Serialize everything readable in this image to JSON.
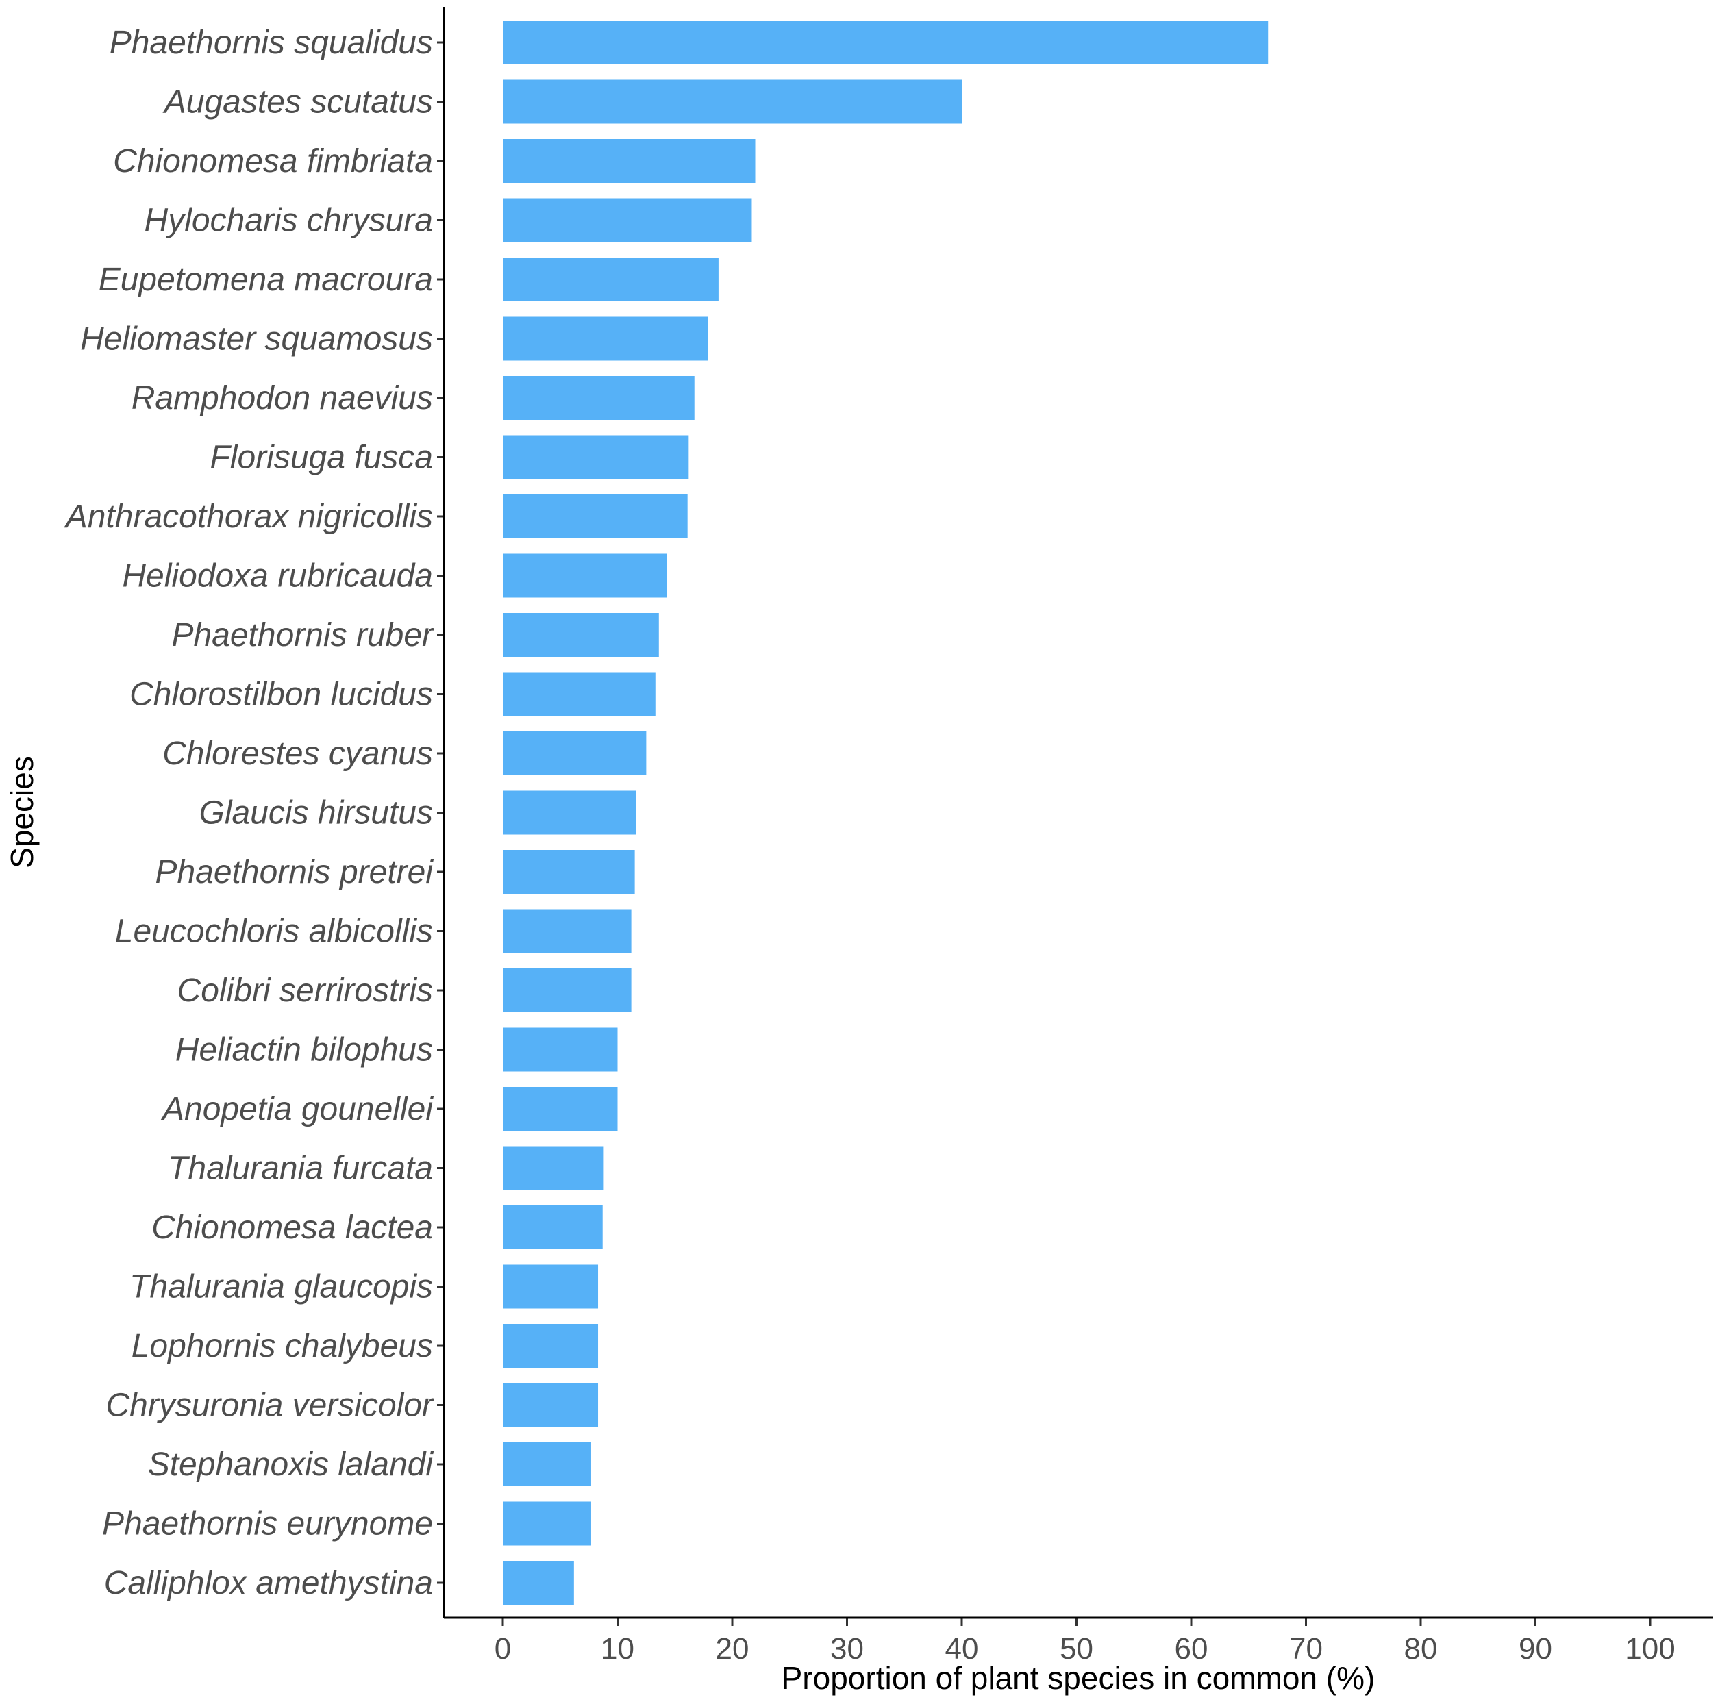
{
  "chart_data": {
    "type": "bar",
    "orientation": "horizontal",
    "categories": [
      "Phaethornis squalidus",
      "Augastes scutatus",
      "Chionomesa fimbriata",
      "Hylocharis chrysura",
      "Eupetomena macroura",
      "Heliomaster squamosus",
      "Ramphodon naevius",
      "Florisuga fusca",
      "Anthracothorax nigricollis",
      "Heliodoxa rubricauda",
      "Phaethornis ruber",
      "Chlorostilbon lucidus",
      "Chlorestes cyanus",
      "Glaucis hirsutus",
      "Phaethornis pretrei",
      "Leucochloris albicollis",
      "Colibri serrirostris",
      "Heliactin bilophus",
      "Anopetia gounellei",
      "Thalurania furcata",
      "Chionomesa lactea",
      "Thalurania glaucopis",
      "Lophornis chalybeus",
      "Chrysuronia versicolor",
      "Stephanoxis lalandi",
      "Phaethornis eurynome",
      "Calliphlox amethystina"
    ],
    "values": [
      66.7,
      40.0,
      22.0,
      21.7,
      18.8,
      17.9,
      16.7,
      16.2,
      16.1,
      14.3,
      13.6,
      13.3,
      12.5,
      11.6,
      11.5,
      11.2,
      11.2,
      10.0,
      10.0,
      8.8,
      8.7,
      8.3,
      8.3,
      8.3,
      7.7,
      7.7,
      6.2
    ],
    "xlabel": "Proportion of plant species in common (%)",
    "ylabel": "Species",
    "xlim": [
      0,
      100
    ],
    "xticks": [
      "0",
      "10",
      "20",
      "30",
      "40",
      "50",
      "60",
      "70",
      "80",
      "90",
      "100"
    ],
    "grid": false,
    "legend": "none",
    "bar_color": "#56b1f7"
  }
}
